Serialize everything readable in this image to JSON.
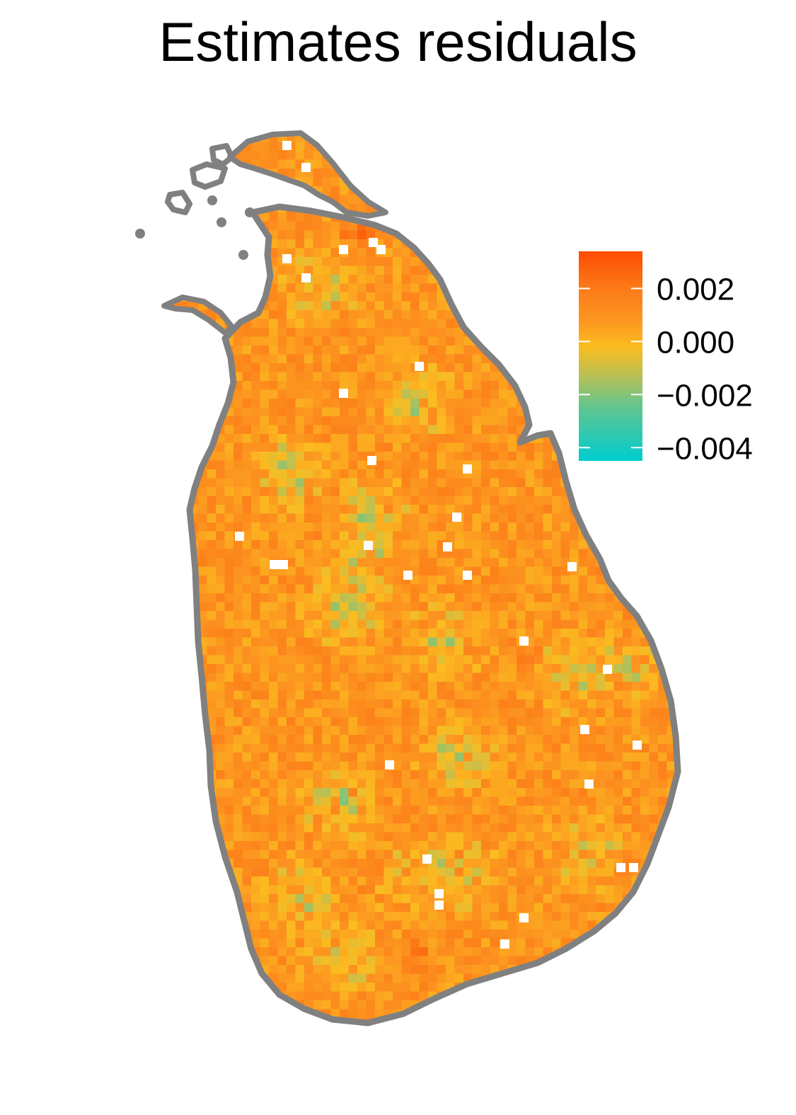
{
  "title": "Estimates residuals",
  "legend": {
    "ticks": [
      {
        "value": 0.002,
        "label": "0.002"
      },
      {
        "value": 0.0,
        "label": "0.000"
      },
      {
        "value": -0.002,
        "label": "−0.002"
      },
      {
        "value": -0.004,
        "label": "−0.004"
      }
    ],
    "min": -0.0045,
    "max": 0.0034,
    "gradient_stops": [
      {
        "value": -0.0045,
        "color": "#00cdd0"
      },
      {
        "value": -0.0025,
        "color": "#60c590"
      },
      {
        "value": -0.0012,
        "color": "#bfc050"
      },
      {
        "value": -0.0002,
        "color": "#fbbc20"
      },
      {
        "value": 0.0008,
        "color": "#fc9620"
      },
      {
        "value": 0.002,
        "color": "#fc7a18"
      },
      {
        "value": 0.0034,
        "color": "#fd4d04"
      }
    ]
  },
  "colors": {
    "outline": "#808080",
    "background": "#ffffff"
  }
}
